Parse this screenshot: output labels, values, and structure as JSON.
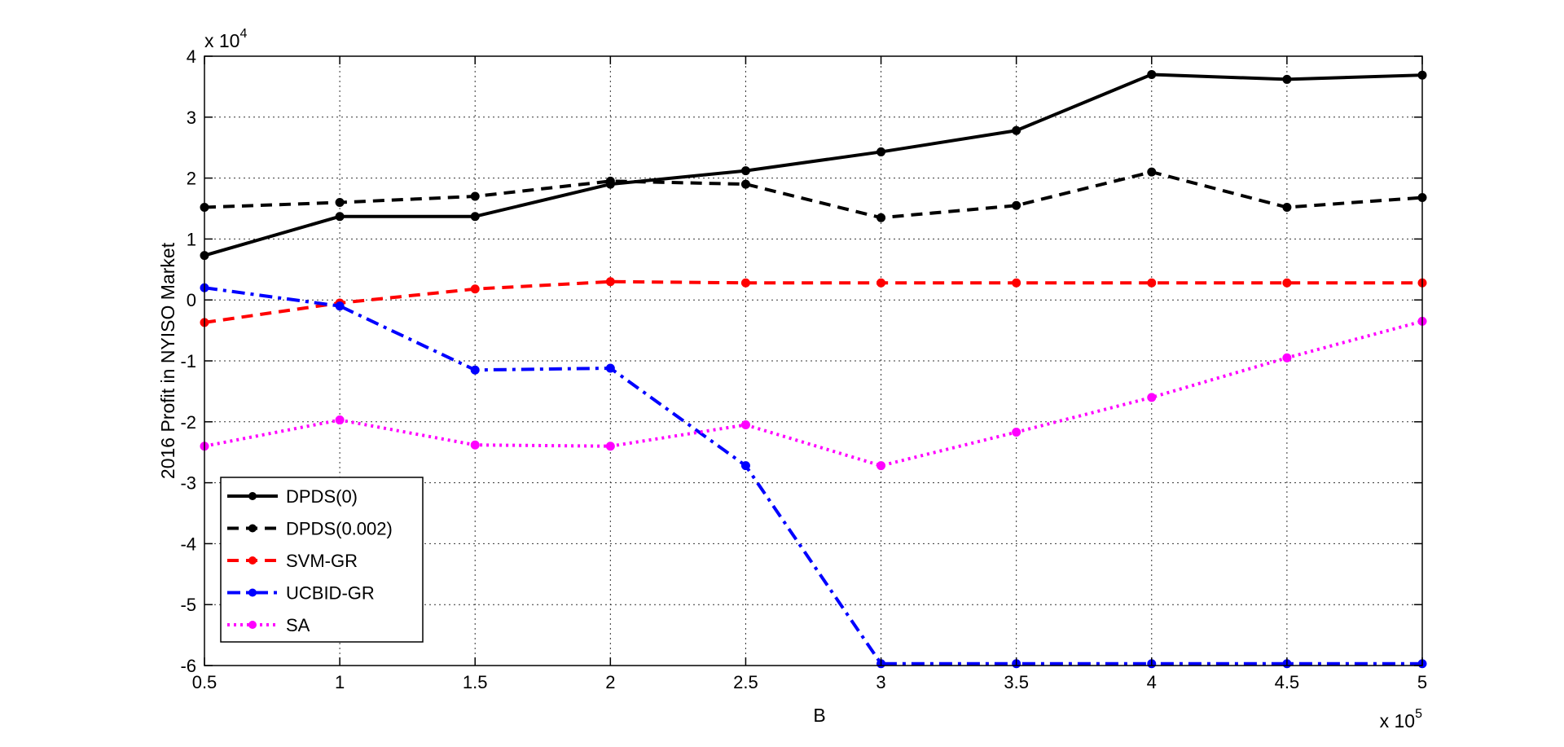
{
  "chart_data": {
    "type": "line",
    "xlabel": "B",
    "ylabel": "2016 Profit in NYISO Market",
    "x_multiplier": "x 10",
    "x_multiplier_exp": "5",
    "y_multiplier": "x 10",
    "y_multiplier_exp": "4",
    "x": [
      0.5,
      1,
      1.5,
      2,
      2.5,
      3,
      3.5,
      4,
      4.5,
      5
    ],
    "xlim": [
      0.5,
      5
    ],
    "ylim": [
      -6,
      4
    ],
    "x_ticks": [
      "0.5",
      "1",
      "1.5",
      "2",
      "2.5",
      "3",
      "3.5",
      "4",
      "4.5",
      "5"
    ],
    "y_ticks": [
      "-6",
      "-5",
      "-4",
      "-3",
      "-2",
      "-1",
      "0",
      "1",
      "2",
      "3",
      "4"
    ],
    "grid": true,
    "legend_position": "bottom-left",
    "series": [
      {
        "name": "DPDS(0)",
        "color": "#000000",
        "dash": "solid",
        "width": 4,
        "values": [
          0.73,
          1.37,
          1.37,
          1.9,
          2.12,
          2.43,
          2.78,
          3.7,
          3.62,
          3.69
        ]
      },
      {
        "name": "DPDS(0.002)",
        "color": "#000000",
        "dash": "dashed",
        "width": 4,
        "values": [
          1.52,
          1.6,
          1.7,
          1.95,
          1.9,
          1.35,
          1.55,
          2.1,
          1.52,
          1.68
        ]
      },
      {
        "name": "SVM-GR",
        "color": "#ff0000",
        "dash": "dashed",
        "width": 4,
        "values": [
          -0.37,
          -0.05,
          0.18,
          0.3,
          0.28,
          0.28,
          0.28,
          0.28,
          0.28,
          0.28
        ]
      },
      {
        "name": "UCBID-GR",
        "color": "#0000ff",
        "dash": "dashdot",
        "width": 4,
        "values": [
          0.2,
          -0.1,
          -1.15,
          -1.12,
          -2.72,
          -5.97,
          -5.97,
          -5.97,
          -5.97,
          -5.97
        ]
      },
      {
        "name": "SA",
        "color": "#ff00ff",
        "dash": "dotted",
        "width": 4,
        "values": [
          -2.4,
          -1.97,
          -2.38,
          -2.4,
          -2.05,
          -2.72,
          -2.17,
          -1.6,
          -0.95,
          -0.35
        ]
      }
    ]
  }
}
